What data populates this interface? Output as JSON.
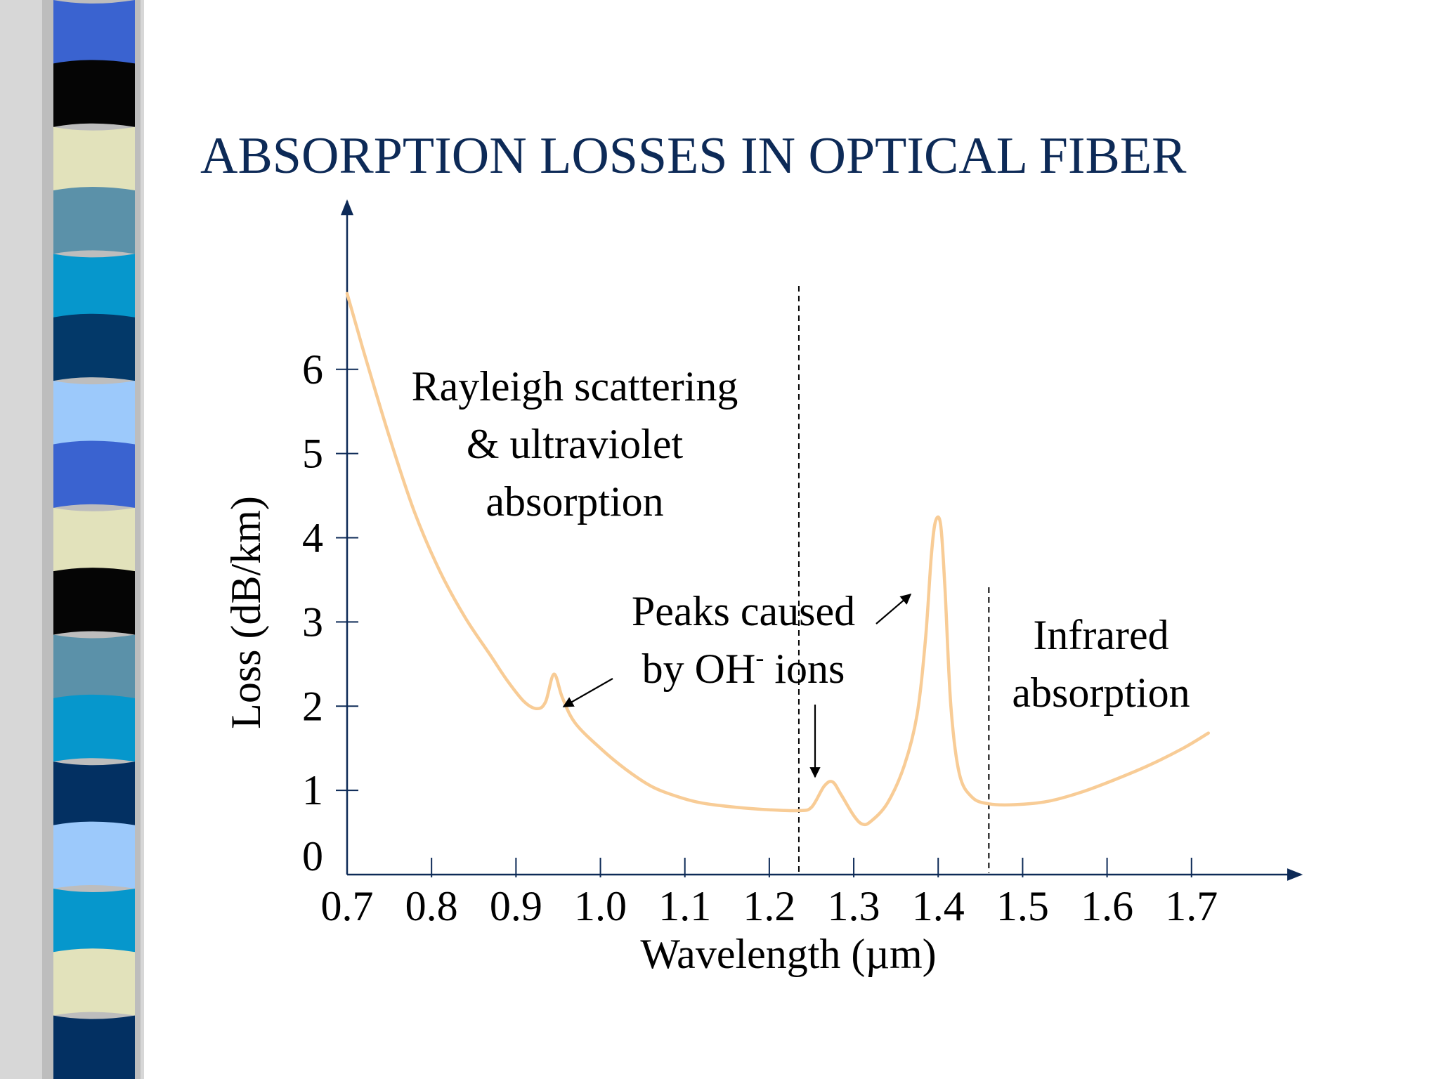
{
  "slide": {
    "title": "ABSORPTION LOSSES IN OPTICAL FIBER",
    "title_color": "#0d2a57",
    "sidebar_colors": [
      "#3a63d0",
      "#050505",
      "#e2e2bb",
      "#5b91a9",
      "#0697cc",
      "#033969",
      "#9cc9fb",
      "#3a63d0",
      "#e2e2bb",
      "#050505",
      "#5b91a9",
      "#0697cc",
      "#033062",
      "#9cc9fb",
      "#0697cc",
      "#e2e2bb",
      "#033062"
    ]
  },
  "chart_data": {
    "type": "line",
    "title": "ABSORPTION LOSSES IN OPTICAL FIBER",
    "xlabel": "Wavelength (µm)",
    "ylabel": "Loss (dB/km)",
    "x_ticks": [
      "0.7",
      "0.8",
      "0.9",
      "1.0",
      "1.1",
      "1.2",
      "1.3",
      "1.4",
      "1.5",
      "1.6",
      "1.7"
    ],
    "y_ticks": [
      "0",
      "1",
      "2",
      "3",
      "4",
      "5",
      "6"
    ],
    "xlim": [
      0.7,
      1.83
    ],
    "ylim": [
      0,
      8
    ],
    "line_color": "#f8cc96",
    "axis_color": "#0d2a57",
    "series": [
      {
        "points": [
          [
            0.7,
            6.9
          ],
          [
            0.72,
            6.2
          ],
          [
            0.75,
            5.2
          ],
          [
            0.78,
            4.3
          ],
          [
            0.81,
            3.6
          ],
          [
            0.84,
            3.05
          ],
          [
            0.87,
            2.6
          ],
          [
            0.89,
            2.3
          ],
          [
            0.91,
            2.05
          ],
          [
            0.925,
            1.97
          ],
          [
            0.935,
            2.05
          ],
          [
            0.945,
            2.38
          ],
          [
            0.955,
            2.1
          ],
          [
            0.97,
            1.8
          ],
          [
            1.0,
            1.5
          ],
          [
            1.03,
            1.25
          ],
          [
            1.06,
            1.05
          ],
          [
            1.09,
            0.93
          ],
          [
            1.12,
            0.85
          ],
          [
            1.16,
            0.8
          ],
          [
            1.2,
            0.77
          ],
          [
            1.235,
            0.76
          ],
          [
            1.25,
            0.8
          ],
          [
            1.265,
            1.05
          ],
          [
            1.275,
            1.1
          ],
          [
            1.285,
            0.95
          ],
          [
            1.3,
            0.7
          ],
          [
            1.31,
            0.6
          ],
          [
            1.32,
            0.63
          ],
          [
            1.34,
            0.85
          ],
          [
            1.36,
            1.3
          ],
          [
            1.375,
            1.9
          ],
          [
            1.385,
            2.8
          ],
          [
            1.392,
            3.8
          ],
          [
            1.397,
            4.2
          ],
          [
            1.403,
            4.15
          ],
          [
            1.408,
            3.4
          ],
          [
            1.415,
            2.0
          ],
          [
            1.425,
            1.2
          ],
          [
            1.44,
            0.92
          ],
          [
            1.46,
            0.84
          ],
          [
            1.49,
            0.83
          ],
          [
            1.53,
            0.87
          ],
          [
            1.57,
            0.98
          ],
          [
            1.61,
            1.13
          ],
          [
            1.65,
            1.3
          ],
          [
            1.69,
            1.5
          ],
          [
            1.72,
            1.68
          ]
        ]
      }
    ],
    "dividers": [
      1.235,
      1.46
    ],
    "annotations": {
      "rayleigh": [
        "Rayleigh scattering",
        "& ultraviolet",
        "absorption"
      ],
      "peaks_line1": "Peaks caused",
      "peaks_line2_prefix": "by OH",
      "peaks_line2_sup": "-",
      "peaks_line2_suffix": " ions",
      "infrared": [
        "Infrared",
        "absorption"
      ]
    }
  }
}
